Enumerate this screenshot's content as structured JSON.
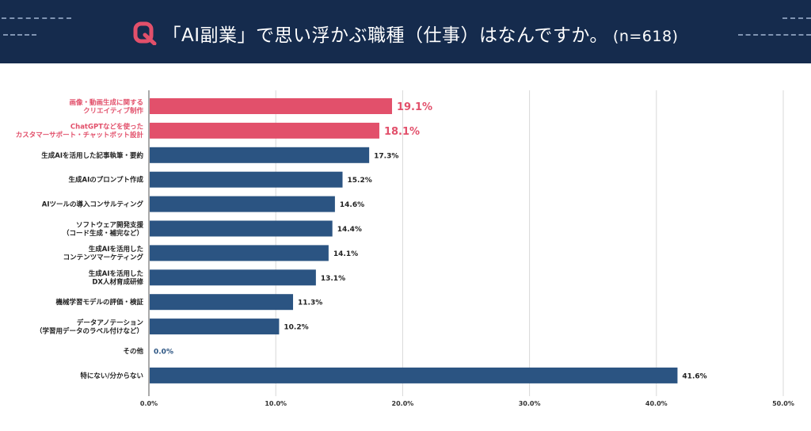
{
  "header": {
    "title": "「AI副業」で思い浮かぶ職種（仕事）はなんですか。",
    "n_label": "(n=618)",
    "logo_icon": "q-logo-icon"
  },
  "colors": {
    "header_bg": "#152b4d",
    "highlight": "#e2506b",
    "normal": "#2b5482",
    "grid": "#d8d8d8"
  },
  "chart_data": {
    "type": "bar",
    "orientation": "horizontal",
    "categories": [
      [
        "画像・動画生成に関する",
        "クリエイティブ制作"
      ],
      [
        "ChatGPTなどを使った",
        "カスタマーサポート・チャットボット設計"
      ],
      [
        "生成AIを活用した記事執筆・要約"
      ],
      [
        "生成AIのプロンプト作成"
      ],
      [
        "AIツールの導入コンサルティング"
      ],
      [
        "ソフトウェア開発支援",
        "（コード生成・補完など）"
      ],
      [
        "生成AIを活用した",
        "コンテンツマーケティング"
      ],
      [
        "生成AIを活用した",
        "DX人材育成研修"
      ],
      [
        "機械学習モデルの評価・検証"
      ],
      [
        "データアノテーション",
        "（学習用データのラベル付けなど）"
      ],
      [
        "その他"
      ],
      [
        "特にない/分からない"
      ]
    ],
    "values": [
      19.1,
      18.1,
      17.3,
      15.2,
      14.6,
      14.4,
      14.1,
      13.1,
      11.3,
      10.2,
      0.0,
      41.6
    ],
    "value_labels": [
      "19.1%",
      "18.1%",
      "17.3%",
      "15.2%",
      "14.6%",
      "14.4%",
      "14.1%",
      "13.1%",
      "11.3%",
      "10.2%",
      "0.0%",
      "41.6%"
    ],
    "highlighted": [
      true,
      true,
      false,
      false,
      false,
      false,
      false,
      false,
      false,
      false,
      false,
      false
    ],
    "xlim": [
      0,
      50
    ],
    "xticks": [
      "0.0%",
      "10.0%",
      "20.0%",
      "30.0%",
      "40.0%",
      "50.0%"
    ],
    "grid": true
  }
}
